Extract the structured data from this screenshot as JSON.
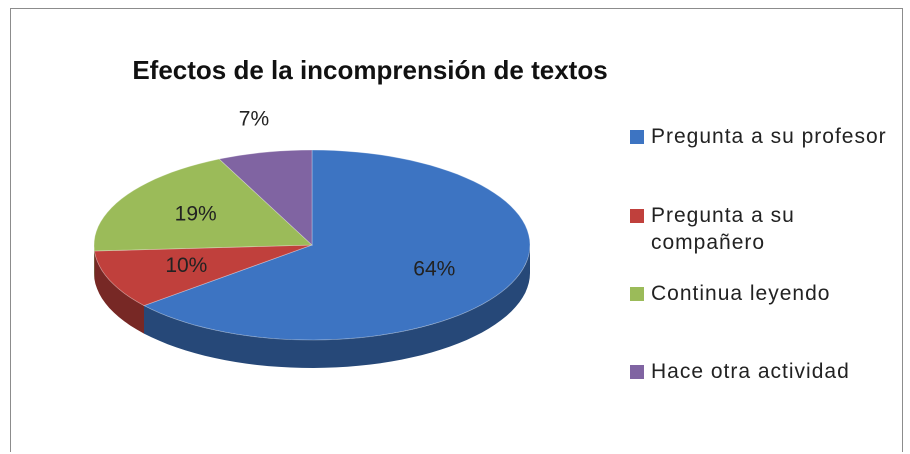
{
  "chart_data": {
    "type": "pie3d",
    "title": "Efectos de la incomprensión de textos",
    "categories": [
      "Pregunta a su profesor",
      "Pregunta a su compañero",
      "Continua leyendo",
      "Hace otra actividad"
    ],
    "values": [
      64,
      10,
      19,
      7
    ],
    "value_labels": [
      "64%",
      "10%",
      "19%",
      "7%"
    ],
    "colors": [
      "#3d74c2",
      "#c0403c",
      "#9bbb59",
      "#8064a2"
    ],
    "legend": "right"
  }
}
